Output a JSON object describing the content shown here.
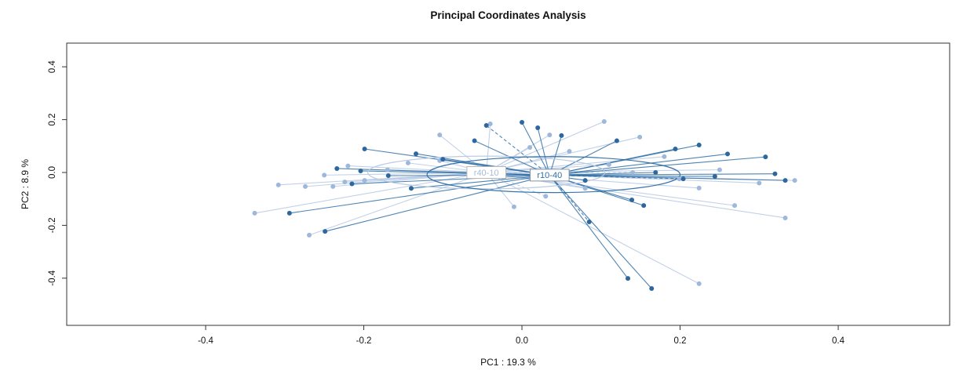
{
  "chart_data": {
    "type": "scatter",
    "title": "Principal Coordinates Analysis",
    "xlabel": "PC1 :  19.3 %",
    "ylabel": "PC2 :  8.9 %",
    "xlim": [
      -0.5757,
      0.5409
    ],
    "ylim": [
      -0.5786,
      0.4896
    ],
    "grid": false,
    "legend_position": "none",
    "x_ticks": {
      "values": [
        -0.4,
        -0.2,
        0,
        0.2,
        0.4
      ],
      "labels": [
        "-0.4",
        "-0.2",
        "0.0",
        "0.2",
        "0.4"
      ]
    },
    "y_ticks": {
      "values": [
        -0.4,
        -0.2,
        0,
        0.2,
        0.4
      ],
      "labels": [
        "-0.4",
        "-0.2",
        "0.0",
        "0.2",
        "0.4"
      ]
    },
    "series": [
      {
        "name": "r40-10",
        "line_color": "#b7c9e4",
        "point_color": "#9db8dc",
        "label_color": "#a9bbd6",
        "box_border": "#b8b8b8",
        "centroid": [
          -0.045,
          0.0
        ],
        "ellipse": {
          "cx": -0.045,
          "cy": 0.0,
          "rx": 0.15,
          "ry": 0.062
        },
        "dashed": [
          23,
          28
        ],
        "points": [
          [
            -0.338,
            -0.154
          ],
          [
            -0.269,
            -0.237
          ],
          [
            -0.308,
            -0.047
          ],
          [
            -0.274,
            -0.053
          ],
          [
            -0.239,
            -0.053
          ],
          [
            -0.224,
            -0.036
          ],
          [
            -0.199,
            -0.03
          ],
          [
            -0.144,
            0.036
          ],
          [
            -0.104,
            0.142
          ],
          [
            -0.104,
            0.045
          ],
          [
            -0.04,
            0.184
          ],
          [
            0.035,
            0.142
          ],
          [
            0.104,
            0.193
          ],
          [
            0.149,
            0.134
          ],
          [
            0.199,
            -0.024
          ],
          [
            0.224,
            -0.059
          ],
          [
            0.269,
            -0.125
          ],
          [
            0.333,
            -0.172
          ],
          [
            0.224,
            -0.421
          ],
          [
            -0.055,
            -0.015
          ],
          [
            0.01,
            0.095
          ],
          [
            0.06,
            0.08
          ],
          [
            0.11,
            0.03
          ],
          [
            0.14,
            0.0
          ],
          [
            -0.17,
            0.01
          ],
          [
            -0.22,
            0.025
          ],
          [
            -0.25,
            -0.01
          ],
          [
            0.08,
            -0.06
          ],
          [
            0.03,
            -0.09
          ],
          [
            -0.01,
            -0.13
          ],
          [
            0.18,
            0.06
          ],
          [
            0.25,
            0.01
          ],
          [
            0.3,
            -0.04
          ],
          [
            0.345,
            -0.03
          ]
        ]
      },
      {
        "name": "r10-40",
        "line_color": "#2f6ea5",
        "point_color": "#2c689f",
        "label_color": "#2f6ea5",
        "box_border": "#8494a4",
        "centroid": [
          0.035,
          -0.01
        ],
        "ellipse": {
          "cx": 0.04,
          "cy": -0.008,
          "rx": 0.16,
          "ry": 0.068
        },
        "dashed": [
          0,
          13,
          19
        ],
        "points": [
          [
            -0.045,
            0.178
          ],
          [
            0.0,
            0.19
          ],
          [
            0.02,
            0.169
          ],
          [
            -0.199,
            0.089
          ],
          [
            -0.134,
            0.071
          ],
          [
            0.194,
            0.089
          ],
          [
            0.224,
            0.104
          ],
          [
            -0.234,
            0.015
          ],
          [
            -0.204,
            0.006
          ],
          [
            -0.169,
            -0.012
          ],
          [
            0.308,
            0.059
          ],
          [
            0.244,
            -0.015
          ],
          [
            0.333,
            -0.03
          ],
          [
            0.204,
            -0.024
          ],
          [
            0.169,
            0.0
          ],
          [
            0.139,
            -0.104
          ],
          [
            0.154,
            -0.125
          ],
          [
            -0.294,
            -0.154
          ],
          [
            -0.249,
            -0.223
          ],
          [
            0.085,
            -0.187
          ],
          [
            0.134,
            -0.401
          ],
          [
            0.164,
            -0.439
          ],
          [
            0.08,
            -0.03
          ],
          [
            -0.1,
            0.05
          ],
          [
            -0.06,
            0.12
          ],
          [
            0.05,
            0.14
          ],
          [
            0.12,
            0.12
          ],
          [
            0.26,
            0.07
          ],
          [
            0.32,
            -0.005
          ],
          [
            -0.14,
            -0.06
          ],
          [
            -0.215,
            -0.043
          ]
        ]
      }
    ]
  }
}
